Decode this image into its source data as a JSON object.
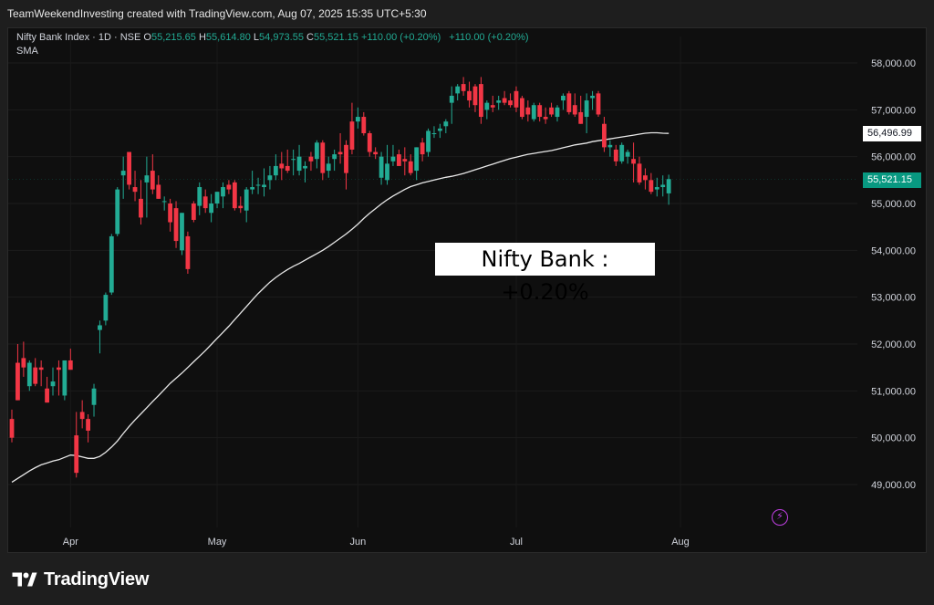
{
  "header": {
    "title": "TeamWeekendInvesting created with TradingView.com, Aug 07, 2025 15:35 UTC+5:30"
  },
  "legend": {
    "symbol": "Nifty Bank Index · 1D · NSE",
    "o_label": "O",
    "o_value": "55,215.65",
    "h_label": "H",
    "h_value": "55,614.80",
    "l_label": "L",
    "l_value": "54,973.55",
    "c_label": "C",
    "c_value": "55,521.15",
    "change1": "+110.00 (+0.20%)",
    "change2": "+110.00 (+0.20%)",
    "indicator": "SMA"
  },
  "overlay": {
    "text": "Nifty Bank : +0.20%"
  },
  "price_tags": {
    "sma": "56,496.99",
    "last": "55,521.15"
  },
  "footer": {
    "brand": "TradingView",
    "logo_icon": "tradingview-logo-icon"
  },
  "colors": {
    "up": "#22ab94",
    "down": "#f23645",
    "sma": "#e8e8e8",
    "grid": "#1c1c1c",
    "accent": "#c240e6"
  },
  "chart_data": {
    "type": "candlestick",
    "title": "Nifty Bank Index · 1D · NSE",
    "ylim": [
      48000,
      58500
    ],
    "y_ticks": [
      49000,
      50000,
      51000,
      52000,
      53000,
      54000,
      55000,
      56000,
      57000,
      58000
    ],
    "y_tick_labels": [
      "49,000.00",
      "50,000.00",
      "51,000.00",
      "52,000.00",
      "53,000.00",
      "54,000.00",
      "55,000.00",
      "56,000.00",
      "57,000.00",
      "58,000.00"
    ],
    "x_labels": [
      {
        "label": "Apr",
        "index": 10
      },
      {
        "label": "May",
        "index": 35
      },
      {
        "label": "Jun",
        "index": 59
      },
      {
        "label": "Jul",
        "index": 86
      },
      {
        "label": "Aug",
        "index": 114
      }
    ],
    "candles": [
      [
        50400,
        50600,
        49900,
        50000
      ],
      [
        51600,
        52000,
        50800,
        50800
      ],
      [
        51700,
        52050,
        51300,
        51500
      ],
      [
        51100,
        51650,
        51000,
        51600
      ],
      [
        51500,
        51700,
        51100,
        51150
      ],
      [
        51500,
        51650,
        51100,
        51450
      ],
      [
        51050,
        51300,
        50750,
        50750
      ],
      [
        51100,
        51500,
        50900,
        51200
      ],
      [
        51500,
        51650,
        50900,
        51450
      ],
      [
        50900,
        51650,
        50800,
        51650
      ],
      [
        51650,
        51900,
        51500,
        51450
      ],
      [
        50050,
        50550,
        49150,
        49250
      ],
      [
        50550,
        50800,
        50200,
        50400
      ],
      [
        50400,
        50500,
        49900,
        50150
      ],
      [
        50700,
        51150,
        50450,
        51050
      ],
      [
        52300,
        52500,
        51800,
        52400
      ],
      [
        52500,
        53100,
        52400,
        53050
      ],
      [
        53100,
        54350,
        53050,
        54300
      ],
      [
        54350,
        55350,
        54300,
        55300
      ],
      [
        55600,
        56000,
        55100,
        55700
      ],
      [
        56100,
        56100,
        55300,
        55400
      ],
      [
        55350,
        55700,
        55050,
        55250
      ],
      [
        55100,
        55500,
        54550,
        54700
      ],
      [
        55450,
        56000,
        54700,
        55600
      ],
      [
        55700,
        56050,
        55200,
        55300
      ],
      [
        55400,
        55600,
        55100,
        55100
      ],
      [
        55050,
        55150,
        54850,
        55050
      ],
      [
        55000,
        55100,
        54400,
        54600
      ],
      [
        54900,
        55050,
        54050,
        54200
      ],
      [
        54000,
        54800,
        53900,
        54800
      ],
      [
        54300,
        54400,
        53500,
        53600
      ],
      [
        55000,
        55050,
        54600,
        54650
      ],
      [
        54950,
        55450,
        54750,
        55350
      ],
      [
        55150,
        55300,
        54800,
        54900
      ],
      [
        54800,
        55200,
        54600,
        55000
      ],
      [
        55000,
        55250,
        54900,
        55250
      ],
      [
        55150,
        55450,
        54900,
        55350
      ],
      [
        55400,
        55500,
        55200,
        55300
      ],
      [
        55450,
        55500,
        54850,
        54900
      ],
      [
        54950,
        55150,
        54800,
        54900
      ],
      [
        54850,
        55350,
        54600,
        55300
      ],
      [
        55300,
        55700,
        55200,
        55350
      ],
      [
        55400,
        55550,
        55200,
        55400
      ],
      [
        55350,
        55750,
        55150,
        55400
      ],
      [
        55500,
        55800,
        55300,
        55600
      ],
      [
        55600,
        56050,
        55500,
        55800
      ],
      [
        55850,
        56100,
        55500,
        55750
      ],
      [
        55800,
        56150,
        55650,
        55700
      ],
      [
        55950,
        56150,
        55600,
        55950
      ],
      [
        55700,
        56250,
        55600,
        56000
      ],
      [
        55750,
        55900,
        55450,
        55800
      ],
      [
        56000,
        56100,
        55700,
        55900
      ],
      [
        55950,
        56350,
        55750,
        56300
      ],
      [
        56300,
        56350,
        55500,
        55650
      ],
      [
        55700,
        56000,
        55550,
        55850
      ],
      [
        55950,
        56150,
        55700,
        56050
      ],
      [
        56100,
        56500,
        55850,
        56050
      ],
      [
        56250,
        56350,
        55300,
        55650
      ],
      [
        56750,
        57150,
        56050,
        56150
      ],
      [
        56750,
        57050,
        56600,
        56850
      ],
      [
        56850,
        56950,
        56450,
        56500
      ],
      [
        56500,
        56550,
        56000,
        56100
      ],
      [
        56100,
        56200,
        55950,
        56050
      ],
      [
        55550,
        56100,
        55400,
        56000
      ],
      [
        55500,
        56250,
        55400,
        55850
      ],
      [
        55900,
        56250,
        55800,
        56000
      ],
      [
        56050,
        56150,
        55800,
        55800
      ],
      [
        55950,
        56200,
        55600,
        55900
      ],
      [
        55900,
        56050,
        55600,
        55650
      ],
      [
        55700,
        56200,
        55500,
        56200
      ],
      [
        56300,
        56400,
        55900,
        56050
      ],
      [
        56100,
        56600,
        56000,
        56550
      ],
      [
        56500,
        56650,
        56400,
        56500
      ],
      [
        56550,
        56700,
        56400,
        56600
      ],
      [
        56650,
        56800,
        56500,
        56750
      ],
      [
        57150,
        57500,
        56700,
        57300
      ],
      [
        57350,
        57550,
        57200,
        57500
      ],
      [
        57550,
        57700,
        57300,
        57400
      ],
      [
        57400,
        57600,
        57050,
        57200
      ],
      [
        57500,
        57550,
        56950,
        57100
      ],
      [
        57550,
        57700,
        56700,
        56850
      ],
      [
        57000,
        57200,
        56800,
        57150
      ],
      [
        57100,
        57300,
        56950,
        57050
      ],
      [
        57150,
        57300,
        57000,
        57200
      ],
      [
        57250,
        57400,
        57100,
        57150
      ],
      [
        57200,
        57350,
        57050,
        57100
      ],
      [
        57400,
        57500,
        56950,
        57050
      ],
      [
        57250,
        57300,
        56800,
        56850
      ],
      [
        57050,
        57200,
        56750,
        56900
      ],
      [
        56800,
        57150,
        56750,
        57100
      ],
      [
        57100,
        57150,
        56750,
        56850
      ],
      [
        56850,
        57050,
        56700,
        56800
      ],
      [
        57050,
        57150,
        56850,
        56900
      ],
      [
        56850,
        57100,
        56750,
        57050
      ],
      [
        57200,
        57350,
        57000,
        57300
      ],
      [
        57350,
        57400,
        56900,
        56950
      ],
      [
        57100,
        57350,
        56850,
        56900
      ],
      [
        56950,
        57300,
        56700,
        56700
      ],
      [
        56850,
        57350,
        56500,
        57200
      ],
      [
        57250,
        57400,
        57000,
        57300
      ],
      [
        57350,
        57400,
        56850,
        56900
      ],
      [
        56700,
        56850,
        56100,
        56200
      ],
      [
        56200,
        56350,
        56000,
        56250
      ],
      [
        56150,
        56250,
        55800,
        55900
      ],
      [
        55900,
        56300,
        55850,
        56250
      ],
      [
        56000,
        56150,
        55850,
        56100
      ],
      [
        55950,
        56300,
        55450,
        55850
      ],
      [
        55850,
        56000,
        55400,
        55450
      ],
      [
        55600,
        55750,
        55300,
        55500
      ],
      [
        55500,
        55650,
        55200,
        55250
      ],
      [
        55300,
        55550,
        55150,
        55350
      ],
      [
        55350,
        55600,
        55150,
        55400
      ],
      [
        55215.65,
        55614.8,
        54973.55,
        55521.15
      ]
    ],
    "sma": [
      49050,
      49130,
      49210,
      49290,
      49360,
      49420,
      49460,
      49500,
      49530,
      49580,
      49630,
      49620,
      49590,
      49560,
      49560,
      49600,
      49690,
      49800,
      49930,
      50090,
      50240,
      50380,
      50510,
      50640,
      50770,
      50900,
      51030,
      51160,
      51270,
      51380,
      51500,
      51620,
      51740,
      51860,
      51990,
      52120,
      52250,
      52380,
      52520,
      52660,
      52800,
      52940,
      53080,
      53200,
      53320,
      53420,
      53510,
      53590,
      53660,
      53720,
      53790,
      53860,
      53930,
      54000,
      54080,
      54170,
      54260,
      54350,
      54450,
      54560,
      54680,
      54790,
      54890,
      54990,
      55080,
      55160,
      55230,
      55300,
      55360,
      55400,
      55440,
      55470,
      55500,
      55530,
      55560,
      55580,
      55610,
      55640,
      55680,
      55720,
      55760,
      55800,
      55840,
      55880,
      55920,
      55960,
      55990,
      56020,
      56050,
      56070,
      56090,
      56110,
      56130,
      56160,
      56190,
      56220,
      56250,
      56270,
      56290,
      56320,
      56340,
      56360,
      56380,
      56400,
      56420,
      56440,
      56460,
      56480,
      56500,
      56510,
      56510,
      56500,
      56496.99
    ],
    "last_price": 55521.15,
    "sma_last": 56496.99
  }
}
